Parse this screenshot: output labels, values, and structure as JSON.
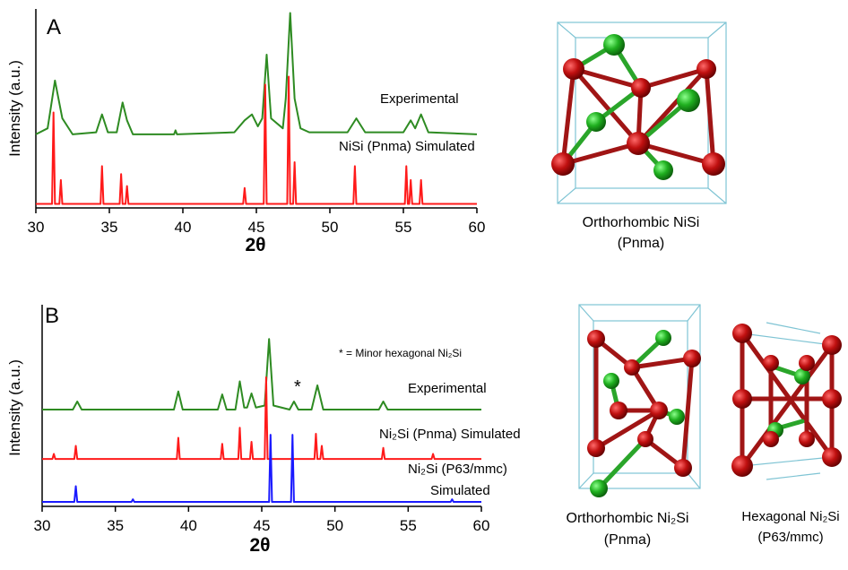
{
  "chart_data": [
    {
      "type": "line",
      "label": "A",
      "xlabel": "2θ",
      "ylabel": "Intensity (a.u.)",
      "xlim": [
        30,
        60
      ],
      "xticks": [
        30,
        35,
        40,
        45,
        50,
        55,
        60
      ],
      "ylim": [
        0,
        100
      ],
      "annotations": [],
      "series": [
        {
          "name": "Experimental",
          "color": "#2e8b22",
          "x": [
            30,
            30.8,
            31.3,
            31.8,
            32.5,
            34.1,
            34.5,
            34.9,
            35.5,
            35.9,
            36.2,
            36.6,
            39.4,
            39.5,
            39.6,
            43.5,
            44.2,
            44.7,
            45.1,
            45.4,
            45.7,
            46.0,
            46.8,
            47.0,
            47.3,
            47.6,
            48.0,
            48.6,
            51.2,
            51.8,
            52.4,
            55.0,
            55.5,
            55.8,
            56.2,
            56.7,
            60
          ],
          "values": [
            37,
            40,
            64,
            45,
            37,
            38,
            47,
            38,
            38,
            53,
            44,
            37,
            37,
            39,
            37,
            38,
            44,
            47,
            41,
            45,
            77,
            45,
            40,
            55,
            98,
            55,
            40,
            38,
            38,
            45,
            38,
            38,
            44,
            40,
            47,
            38,
            37
          ]
        },
        {
          "name": "NiSi (Pnma) Simulated",
          "color": "#ff1a1a",
          "x": [
            30,
            31.1,
            31.2,
            31.3,
            31.6,
            31.7,
            31.8,
            34.4,
            34.5,
            34.6,
            35.7,
            35.8,
            35.9,
            36.1,
            36.2,
            36.3,
            44.1,
            44.2,
            44.3,
            45.5,
            45.6,
            45.7,
            47.1,
            47.2,
            47.3,
            47.5,
            47.6,
            47.7,
            51.6,
            51.7,
            51.8,
            55.1,
            55.2,
            55.3,
            55.4,
            55.5,
            55.6,
            56.1,
            56.2,
            56.3,
            60
          ],
          "values": [
            2,
            2,
            48,
            2,
            2,
            14,
            2,
            2,
            21,
            2,
            2,
            17,
            2,
            2,
            11,
            2,
            2,
            10,
            2,
            2,
            62,
            2,
            2,
            66,
            2,
            2,
            23,
            2,
            2,
            21,
            2,
            2,
            21,
            2,
            2,
            14,
            2,
            2,
            14,
            2,
            2
          ]
        }
      ]
    },
    {
      "type": "line",
      "label": "B",
      "xlabel": "2θ",
      "ylabel": "Intensity (a.u.)",
      "xlim": [
        30,
        60
      ],
      "xticks": [
        30,
        35,
        40,
        45,
        50,
        55,
        60
      ],
      "ylim": [
        0,
        100
      ],
      "annotations": [
        {
          "text": "* = Minor hexagonal Ni₂Si"
        },
        {
          "text": "*"
        },
        {
          "text": "Simulated"
        }
      ],
      "series": [
        {
          "name": "Experimental",
          "color": "#2e8b22",
          "x": [
            30,
            32.1,
            32.4,
            32.7,
            39.0,
            39.3,
            39.6,
            42.0,
            42.3,
            42.6,
            43.2,
            43.5,
            43.8,
            44.0,
            44.3,
            44.6,
            45.2,
            45.5,
            45.8,
            46.9,
            47.2,
            47.5,
            48.4,
            48.8,
            49.2,
            53.0,
            53.3,
            53.6,
            60
          ],
          "values": [
            48,
            48,
            52,
            48,
            48,
            57,
            48,
            48,
            55.5,
            48,
            48,
            62,
            49,
            49,
            56,
            49,
            50,
            83,
            50,
            48,
            52,
            48,
            48,
            60,
            48,
            48,
            52,
            48,
            48
          ]
        },
        {
          "name": "Ni₂Si (Pnma)  Simulated",
          "color": "#ff1a1a",
          "x": [
            30,
            30.7,
            30.8,
            30.9,
            32.2,
            32.3,
            32.4,
            39.2,
            39.3,
            39.4,
            42.2,
            42.3,
            42.4,
            43.4,
            43.5,
            43.6,
            44.2,
            44.3,
            44.4,
            45.2,
            45.3,
            45.4,
            48.6,
            48.7,
            48.8,
            49.0,
            49.1,
            49.2,
            53.2,
            53.3,
            53.4,
            56.6,
            56.7,
            56.8,
            60
          ],
          "values": [
            23.5,
            23.5,
            26,
            23.5,
            23.5,
            30,
            23.5,
            23.5,
            34,
            23.5,
            23.5,
            31,
            23.5,
            23.5,
            39,
            23.5,
            23.5,
            32,
            23.5,
            23.5,
            64,
            23.5,
            23.5,
            36,
            23.5,
            23.5,
            30,
            23.5,
            23.5,
            29,
            23.5,
            23.5,
            26,
            23.5,
            23.5
          ]
        },
        {
          "name": "Ni₂Si (P63/mmc)",
          "color": "#1a1aff",
          "x": [
            30,
            32.2,
            32.3,
            32.4,
            36.1,
            36.2,
            36.3,
            45.5,
            45.6,
            45.7,
            47.0,
            47.1,
            47.2,
            57.9,
            58.0,
            58.1,
            60
          ],
          "values": [
            2.2,
            2.2,
            10,
            2.2,
            2.2,
            3.5,
            2.2,
            2.2,
            35.5,
            2.2,
            2.2,
            35.5,
            2.2,
            2.2,
            3.5,
            2.2,
            2.2
          ]
        }
      ]
    }
  ],
  "structures": [
    {
      "name": "Orthorhombic NiSi",
      "space_group": "(Pnma)"
    },
    {
      "name": "Orthorhombic Ni₂Si",
      "space_group": "(Pnma)"
    },
    {
      "name": "Hexagonal  Ni₂Si",
      "space_group": "(P63/mmc)"
    }
  ]
}
